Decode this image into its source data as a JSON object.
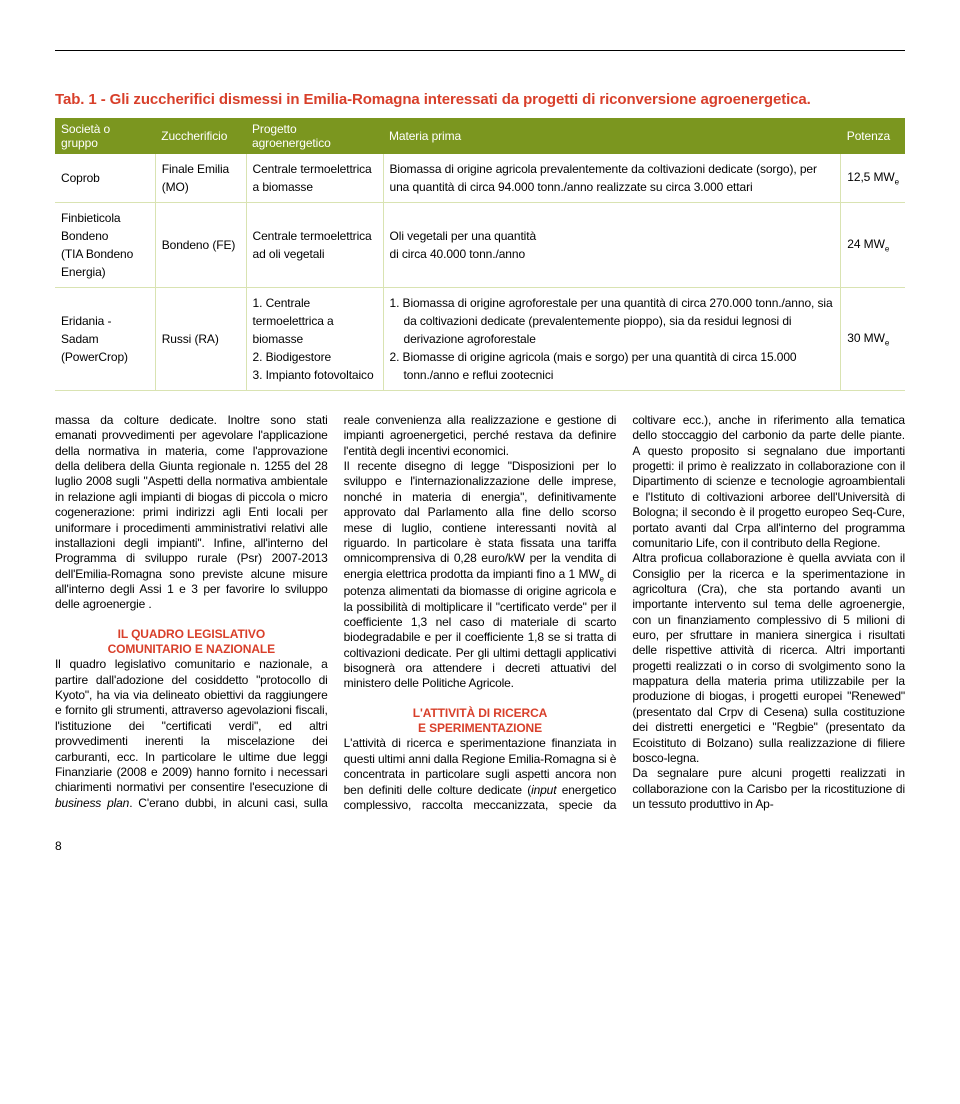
{
  "table": {
    "title": "Tab. 1 - Gli zuccherifici dismessi in Emilia-Romagna interessati da progetti di riconversione agroenergetica.",
    "headers": [
      "Società o gruppo",
      "Zuccherificio",
      "Progetto agroenergetico",
      "Materia prima",
      "Potenza"
    ],
    "header_bg": "#7b961f",
    "header_fg": "#ffffff",
    "border_color": "#d9e3b2",
    "rows": [
      {
        "societa": "Coprob",
        "zuccherificio": "Finale Emilia (MO)",
        "progetto": "Centrale termoelettrica a biomasse",
        "materia": "Biomassa di origine agricola prevalentemente da coltivazioni dedicate (sorgo), per una quantità di circa 94.000 tonn./anno realizzate su circa 3.000 ettari",
        "potenza": "12,5 MW"
      },
      {
        "societa": "Finbieticola Bondeno\n(TIA Bondeno Energia)",
        "zuccherificio": "Bondeno (FE)",
        "progetto": "Centrale termoelettrica\nad oli vegetali",
        "materia": "Oli vegetali per una quantità\ndi circa 40.000 tonn./anno",
        "potenza": "24 MW"
      },
      {
        "societa": "Eridania -Sadam\n(PowerCrop)",
        "zuccherificio": "Russi (RA)",
        "progetto": "1. Centrale termoelettrica a biomasse\n2. Biodigestore\n3. Impianto fotovoltaico",
        "materia": "1. Biomassa di origine agroforestale per una quantità di circa 270.000 tonn./anno, sia da coltivazioni dedicate (prevalentemente pioppo), sia da residui legnosi di derivazione agroforestale\n2. Biomasse di origine agricola (mais e sorgo) per una quantità di circa 15.000 tonn./anno e reflui zootecnici",
        "potenza": "30 MW"
      }
    ]
  },
  "body": {
    "p1": "massa da colture dedicate.",
    "p2": "Inoltre sono stati emanati provvedimenti per agevolare l'applicazione della normativa in materia, come l'approvazione della delibera della Giunta regionale n. 1255 del 28 luglio 2008 sugli \"Aspetti della normativa ambientale in relazione agli impianti di biogas di piccola o micro cogenerazione: primi indirizzi agli Enti locali per uniformare i procedimenti amministrativi relativi alle installazioni degli impianti\". Infine, all'interno del Programma di sviluppo rurale (Psr) 2007-2013 dell'Emilia-Romagna sono previste alcune misure all'interno degli Assi 1 e 3 per favorire lo sviluppo delle agroenergie .",
    "h1a": "IL QUADRO LEGISLATIVO",
    "h1b": "COMUNITARIO E NAZIONALE",
    "p3a": "Il quadro legislativo comunitario e nazionale, a partire dall'adozione del cosiddetto \"protocollo di Kyoto\", ha via via delineato obiettivi da raggiungere e fornito gli strumenti, attraverso agevolazioni fiscali, l'istituzione dei \"certificati verdi\", ed altri provvedimenti inerenti la miscelazione dei carburanti, ecc. In particolare le ultime due leggi Finanziarie (2008 e 2009) hanno fornito i necessari chiarimenti normativi per consentire l'esecuzione di ",
    "p3b": "business plan",
    "p3c": ". C'erano dubbi, in alcuni casi, sulla reale convenienza alla realizzazione e gestione di impianti agroenergetici, perché restava da definire l'entità degli incentivi economici.",
    "p4a": "Il recente disegno di legge \"Disposizioni per lo sviluppo e l'internazionalizzazione delle imprese, nonché in materia di energia\", definitivamente approvato dal Parlamento alla fine dello scorso mese di luglio, contiene interessanti novità al riguardo. In particolare è stata fissata una tariffa omnicomprensiva di 0,28 euro/kW per la vendita di energia elettrica prodotta da impianti fino a 1 MW",
    "p4b": " di potenza alimentati da biomasse di origine agricola e la possibilità di moltiplicare il \"certificato verde\" per il coefficiente 1,3 nel caso di materiale di scarto biodegradabile e per il coefficiente 1,8 se si tratta di coltivazioni dedicate. Per gli ultimi dettagli applicativi bisognerà ora attendere i decreti attuativi del ministero delle Politiche Agricole.",
    "h2a": "L'ATTIVITÀ DI RICERCA",
    "h2b": "E SPERIMENTAZIONE",
    "p5a": "L'attività di ricerca e sperimentazione finanziata in questi ultimi anni dalla Regione Emilia-Romagna si è concentrata in particolare sugli aspetti ancora non ben definiti delle colture dedicate (",
    "p5b": "input",
    "p5c": " energetico complessivo, raccolta meccanizzata, specie da coltivare ecc.), anche in riferimento alla tematica dello stoccaggio del carbonio da parte delle piante. A questo proposito si segnalano due importanti progetti: il primo è realizzato in collaborazione con il Dipartimento di scienze e tecnologie agroambientali e l'Istituto di coltivazioni arboree dell'Università di Bologna; il secondo è il progetto europeo Seq-Cure, portato avanti dal Crpa all'interno del programma comunitario Life, con il contributo della Regione.",
    "p6": "Altra proficua collaborazione è quella avviata con il Consiglio per la ricerca e la sperimentazione in agricoltura (Cra), che sta portando avanti un importante intervento sul tema delle agroenergie, con un finanziamento complessivo di 5 milioni di euro, per sfruttare in maniera sinergica i risultati delle rispettive attività di ricerca. Altri importanti progetti realizzati o in corso di svolgimento sono la mappatura della materia prima utilizzabile per la produzione di biogas, i progetti europei \"Renewed\" (presentato dal Crpv di Cesena) sulla costituzione dei distretti energetici e \"Regbie\" (presentato da Ecoistituto di Bolzano) sulla realizzazione di filiere bosco-legna.",
    "p7": "Da segnalare pure alcuni progetti realizzati in collaborazione con la Carisbo per la ricostituzione di un tessuto produttivo in Ap-"
  },
  "page_number": "8"
}
